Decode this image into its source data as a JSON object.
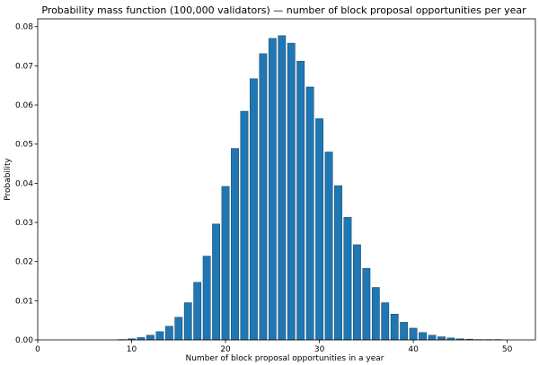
{
  "chart_data": {
    "type": "bar",
    "title": "Probability mass function (100,000 validators) — number of block proposal opportunities per year",
    "xlabel": "Number of block proposal opportunities in a year",
    "ylabel": "Probability",
    "xlim": [
      0,
      53
    ],
    "ylim": [
      0,
      0.082
    ],
    "xticks": [
      0,
      10,
      20,
      30,
      40,
      50
    ],
    "yticks": [
      0.0,
      0.01,
      0.02,
      0.03,
      0.04,
      0.05,
      0.06,
      0.07,
      0.08
    ],
    "ytick_labels": [
      "0.00",
      "0.01",
      "0.02",
      "0.03",
      "0.04",
      "0.05",
      "0.06",
      "0.07",
      "0.08"
    ],
    "bar_color": "#1f77b4",
    "grid": false,
    "x": [
      9,
      10,
      11,
      12,
      13,
      14,
      15,
      16,
      17,
      18,
      19,
      20,
      21,
      22,
      23,
      24,
      25,
      26,
      27,
      28,
      29,
      30,
      31,
      32,
      33,
      34,
      35,
      36,
      37,
      38,
      39,
      40,
      41,
      42,
      43,
      44,
      45,
      46,
      47,
      48,
      49
    ],
    "values": [
      0.0001,
      0.0003,
      0.0006,
      0.0012,
      0.0021,
      0.0035,
      0.0058,
      0.0095,
      0.0147,
      0.0214,
      0.0296,
      0.0392,
      0.0489,
      0.0584,
      0.0667,
      0.0731,
      0.077,
      0.0777,
      0.0758,
      0.0712,
      0.0646,
      0.0565,
      0.048,
      0.0394,
      0.0313,
      0.0243,
      0.0183,
      0.0134,
      0.0095,
      0.0066,
      0.0045,
      0.003,
      0.0019,
      0.0012,
      0.0008,
      0.0005,
      0.0003,
      0.0002,
      0.0001,
      0.0001,
      0.0001
    ]
  }
}
